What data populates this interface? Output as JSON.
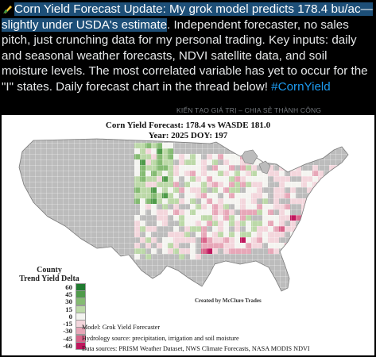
{
  "tweet": {
    "emoji": "corn-emoji",
    "highlighted_text": "Corn Yield Forecast Update: My grok model predicts 178.4 bu/ac—slightly under USDA's estimate",
    "body_text": ". Independent forecaster, no sales pitch, just crunching data for my personal trading. Key inputs: daily and seasonal weather forecasts, NDVI satellite data, and soil moisture levels. The most correlated variable has yet to occur for the \"I\" states. Daily forecast chart in the thread below! ",
    "hashtag": "#CornYield"
  },
  "watermark": "KIẾN TẠO GIÁ TRỊ – CHIA SẺ THÀNH CÔNG",
  "map": {
    "title": "Corn Yield Forecast: 178.4 vs WASDE 181.0",
    "subtitle": "Year: 2025 DOY: 197",
    "legend_title": "County\nTrend Yield Delta",
    "legend": [
      {
        "label": "60",
        "color": "#1f7a2f"
      },
      {
        "label": "45",
        "color": "#4f9b4a"
      },
      {
        "label": "30",
        "color": "#84bb72"
      },
      {
        "label": "15",
        "color": "#bcd9a8"
      },
      {
        "label": "0",
        "color": "#f4f4f0"
      },
      {
        "label": "-15",
        "color": "#f3d6dc"
      },
      {
        "label": "-30",
        "color": "#e7a7b8"
      },
      {
        "label": "-45",
        "color": "#d9648a"
      },
      {
        "label": "-60",
        "color": "#c0175e"
      }
    ],
    "credit": "Created by McClure Trades",
    "notes": [
      "Model: Grok Yield Forecaster",
      "Hydrology source: precipitation, irrigation and soil moisture",
      "Data sources: PRISM Weather Dataset, NWS Climate Forecasts, NASA MODIS NDVI"
    ],
    "colors": {
      "no_data": "#bcbcbc",
      "county_border": "#ffffff"
    }
  }
}
